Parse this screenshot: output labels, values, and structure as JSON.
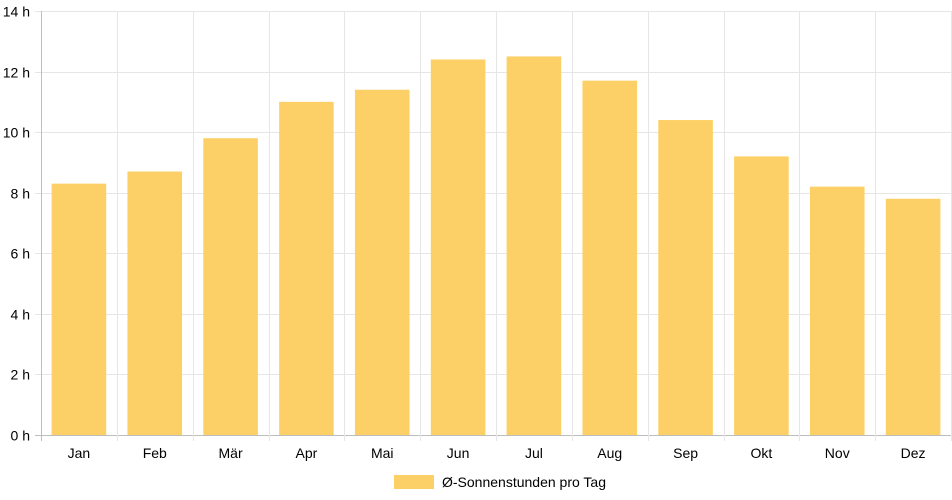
{
  "chart_data": {
    "type": "bar",
    "categories": [
      "Jan",
      "Feb",
      "Mär",
      "Apr",
      "Mai",
      "Jun",
      "Jul",
      "Aug",
      "Sep",
      "Okt",
      "Nov",
      "Dez"
    ],
    "series": [
      {
        "name": "Ø-Sonnenstunden pro Tag",
        "values": [
          8.3,
          8.7,
          9.8,
          11.0,
          11.4,
          12.4,
          12.5,
          11.7,
          10.4,
          9.2,
          8.2,
          7.8
        ],
        "color": "#fdd067"
      }
    ],
    "ylim": [
      0,
      14
    ],
    "yticks": [
      0,
      2,
      4,
      6,
      8,
      10,
      12,
      14
    ],
    "y_tick_suffix": " h",
    "grid": true,
    "legend_position": "bottom"
  }
}
